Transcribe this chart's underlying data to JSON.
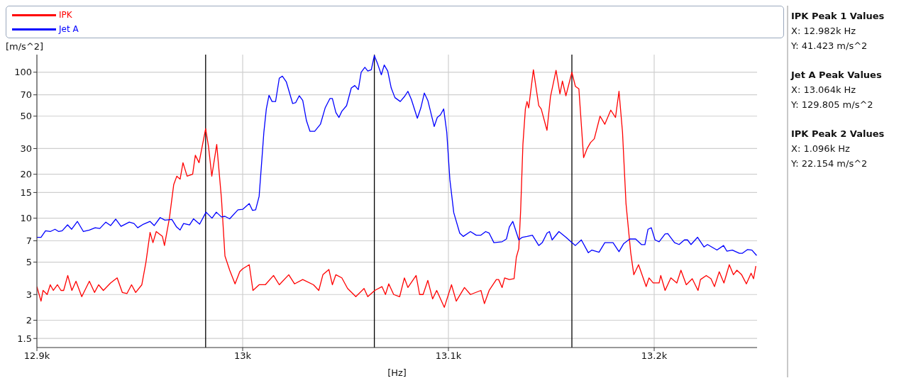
{
  "chart_data": {
    "type": "line",
    "xlabel": "[Hz]",
    "ylabel": "[m/s^2]",
    "log": "y",
    "grid": true,
    "legend": "top",
    "line_style": "solid",
    "xlim": [
      12900,
      13250
    ],
    "xticks": [
      {
        "value": 12900,
        "label": "12.9k"
      },
      {
        "value": 13000,
        "label": "13k"
      },
      {
        "value": 13100,
        "label": "13.1k"
      },
      {
        "value": 13200,
        "label": "13.2k"
      }
    ],
    "ylim": [
      1.3,
      132
    ],
    "yticks": [
      1.5,
      2,
      3,
      5,
      7,
      10,
      15,
      20,
      30,
      50,
      70,
      100
    ],
    "ref_lines": [
      {
        "axis": "x",
        "value": 12982,
        "color": "#000000"
      },
      {
        "axis": "x",
        "value": 13064,
        "color": "#000000"
      },
      {
        "axis": "x",
        "value": 13160,
        "color": "#000000"
      }
    ],
    "annotations": [
      "IPK Peak 1 Values",
      "X: 12.982k Hz",
      "Y: 41.423 m/s^2",
      "Jet A Peak Values",
      "X: 13.064k Hz",
      "Y: 129.805 m/s^2",
      "IPK Peak 2 Values",
      "X: 1.096k Hz",
      "Y: 22.154 m/s^2"
    ],
    "series": [
      {
        "name": "IPK",
        "color": "#ff0000",
        "x": [
          12900,
          12902,
          12903,
          12905,
          12906.5,
          12908,
          12910,
          12911.7,
          12913,
          12915,
          12917,
          12919,
          12921.8,
          12925.5,
          12928,
          12930,
          12932.3,
          12935.8,
          12939,
          12941.5,
          12943.8,
          12946,
          12948,
          12951,
          12953,
          12955,
          12956.4,
          12958,
          12961,
          12962,
          12964.4,
          12966.5,
          12968,
          12969.6,
          12971,
          12973,
          12975.7,
          12977,
          12978.8,
          12982,
          12983.4,
          12985,
          12987.4,
          12989.7,
          12991.4,
          12993.7,
          12996.3,
          12998.6,
          13000,
          13003.2,
          13005,
          13008,
          13011,
          13015,
          13017.8,
          13022.4,
          13025.2,
          13029.2,
          13034.4,
          13037,
          13039,
          13041.9,
          13043.6,
          13045.3,
          13048.2,
          13051,
          13055,
          13059,
          13060.8,
          13064.2,
          13067.7,
          13069.4,
          13071,
          13073.4,
          13076.3,
          13078.6,
          13080.3,
          13084.3,
          13086,
          13087.7,
          13090,
          13092.3,
          13094.3,
          13098,
          13101.5,
          13103.8,
          13107.8,
          13110.7,
          13115.8,
          13117.5,
          13119.8,
          13123.3,
          13124.4,
          13126.1,
          13127.3,
          13129.6,
          13131.9,
          13133,
          13134.2,
          13135.1,
          13136.2,
          13137.4,
          13138.2,
          13139,
          13141.3,
          13143.9,
          13145.1,
          13147.9,
          13149.6,
          13152.3,
          13154.2,
          13155.4,
          13157.1,
          13160,
          13161.7,
          13163.4,
          13165.7,
          13167.4,
          13169.1,
          13170.9,
          13173.7,
          13176,
          13178.9,
          13181.2,
          13182.9,
          13184.6,
          13186.3,
          13188.6,
          13190.1,
          13192.4,
          13196.1,
          13197.5,
          13199.5,
          13202.4,
          13203.2,
          13205.3,
          13208.1,
          13211,
          13213,
          13215.6,
          13218.5,
          13221.3,
          13222.5,
          13225.3,
          13227.6,
          13229.3,
          13231.6,
          13233.9,
          13236.5,
          13238.5,
          13240.2,
          13242.5,
          13244.8,
          13247.1,
          13248.3,
          13249.4
        ],
        "values": [
          3.4,
          2.7,
          3.2,
          3.0,
          3.5,
          3.2,
          3.5,
          3.2,
          3.2,
          4.05,
          3.2,
          3.7,
          2.9,
          3.7,
          3.1,
          3.5,
          3.2,
          3.6,
          3.9,
          3.1,
          3.05,
          3.5,
          3.1,
          3.5,
          5.0,
          8.0,
          6.8,
          8.1,
          7.5,
          6.5,
          10,
          17,
          19.4,
          18.5,
          24,
          19.4,
          20,
          27,
          24,
          41,
          31,
          19.4,
          32,
          13.6,
          5.5,
          4.4,
          3.55,
          4.3,
          4.5,
          4.8,
          3.2,
          3.5,
          3.5,
          4.05,
          3.5,
          4.1,
          3.55,
          3.8,
          3.5,
          3.2,
          4.1,
          4.45,
          3.5,
          4.1,
          3.9,
          3.3,
          2.9,
          3.3,
          2.9,
          3.2,
          3.4,
          3.0,
          3.55,
          3.0,
          2.9,
          3.9,
          3.35,
          4.05,
          3.0,
          3.0,
          3.75,
          2.8,
          3.2,
          2.45,
          3.5,
          2.7,
          3.35,
          3.0,
          3.2,
          2.6,
          3.2,
          3.8,
          3.8,
          3.35,
          3.9,
          3.8,
          3.85,
          5.4,
          6.2,
          11.3,
          32,
          56,
          63,
          57,
          104,
          59,
          56,
          40,
          68,
          103,
          71,
          87,
          69,
          100,
          80,
          77,
          26,
          30,
          33,
          35,
          50,
          44,
          55,
          49,
          74,
          39,
          12.6,
          5.8,
          4.1,
          4.8,
          3.4,
          3.9,
          3.6,
          3.6,
          4.05,
          3.2,
          3.9,
          3.6,
          4.4,
          3.5,
          3.85,
          3.2,
          3.8,
          4.05,
          3.85,
          3.4,
          4.3,
          3.6,
          4.8,
          4.1,
          4.4,
          4.1,
          3.55,
          4.2,
          3.85,
          4.7
        ]
      },
      {
        "name": "Jet A",
        "color": "#0000ff",
        "x": [
          12900,
          12902,
          12904.2,
          12906.5,
          12908.8,
          12910.6,
          12912.3,
          12914.9,
          12916.9,
          12919.7,
          12922.6,
          12925.5,
          12928.3,
          12930.6,
          12933.5,
          12935.8,
          12938.3,
          12940.9,
          12944.9,
          12947.2,
          12949,
          12951.8,
          12955,
          12957,
          12959.9,
          12962.2,
          12965.6,
          12967.9,
          12969.6,
          12971.3,
          12974.2,
          12976.1,
          12979.1,
          12982.2,
          12985.1,
          12987.2,
          12989.7,
          12991.4,
          12993.7,
          12997.7,
          13000,
          13003.2,
          13004.8,
          13006.3,
          13008,
          13009.2,
          13010.3,
          13011.5,
          13012.8,
          13014.3,
          13016,
          13017.8,
          13019.3,
          13021.2,
          13024.3,
          13025.8,
          13027.5,
          13029.2,
          13031,
          13032.7,
          13035,
          13037.8,
          13040.1,
          13042.4,
          13043.6,
          13045.3,
          13046.8,
          13048.2,
          13050.5,
          13052.8,
          13054.5,
          13056.2,
          13057.6,
          13059.4,
          13060.8,
          13062.5,
          13064,
          13065.6,
          13067.4,
          13068.8,
          13070.5,
          13072.2,
          13074,
          13076.6,
          13078.6,
          13080.3,
          13082,
          13084.9,
          13086.6,
          13088.3,
          13090,
          13093.1,
          13094.6,
          13096.1,
          13097.7,
          13099.2,
          13100.7,
          13102.6,
          13105.5,
          13107.2,
          13110.7,
          13113.5,
          13115.8,
          13118.1,
          13119.8,
          13122.1,
          13126.1,
          13128.2,
          13129.6,
          13131.3,
          13134.2,
          13135.9,
          13138.2,
          13140.8,
          13143.9,
          13145.6,
          13147.9,
          13149.1,
          13150.4,
          13153.7,
          13157.1,
          13160,
          13161.7,
          13164.6,
          13168,
          13169.7,
          13173.2,
          13176,
          13180,
          13182.9,
          13185.2,
          13188.1,
          13191,
          13193.8,
          13195.5,
          13197,
          13198.6,
          13200.4,
          13202.4,
          13205.3,
          13206.6,
          13209.9,
          13212.1,
          13214.7,
          13216.2,
          13217.9,
          13221.1,
          13224.2,
          13225.9,
          13230.5,
          13233.7,
          13235.3,
          13238,
          13241.4,
          13242.9,
          13245.4,
          13247.5,
          13249.8
        ],
        "values": [
          7.4,
          7.4,
          8.2,
          8.1,
          8.4,
          8.1,
          8.2,
          9.0,
          8.4,
          9.5,
          8.1,
          8.3,
          8.6,
          8.5,
          9.4,
          8.9,
          9.85,
          8.8,
          9.4,
          9.2,
          8.6,
          9.1,
          9.5,
          8.9,
          10.1,
          9.7,
          9.8,
          8.7,
          8.3,
          9.2,
          9.0,
          9.9,
          9.1,
          11,
          10,
          11,
          10.2,
          10.3,
          9.9,
          11.4,
          11.5,
          12.6,
          11.3,
          11.4,
          14.1,
          23.8,
          38.7,
          56,
          69.5,
          63,
          63,
          91,
          94,
          86,
          61,
          62,
          69,
          64,
          46.6,
          39.4,
          39.4,
          44,
          57,
          66,
          66,
          53,
          49,
          54,
          59,
          78,
          81,
          76,
          100,
          108,
          102,
          104,
          129.8,
          114,
          96,
          112,
          102,
          78,
          67,
          63,
          68,
          74,
          65,
          48.4,
          57,
          72,
          64,
          42.5,
          49,
          51,
          56,
          38.7,
          18.4,
          10.9,
          7.9,
          7.5,
          8.1,
          7.65,
          7.65,
          8.1,
          7.9,
          6.8,
          6.9,
          7.2,
          8.7,
          9.5,
          7.1,
          7.4,
          7.5,
          7.65,
          6.5,
          6.8,
          7.9,
          8.1,
          7.1,
          8.1,
          7.4,
          6.8,
          6.5,
          7.1,
          5.8,
          6.05,
          5.85,
          6.8,
          6.8,
          5.9,
          6.7,
          7.2,
          7.2,
          6.6,
          6.6,
          8.4,
          8.6,
          7.1,
          6.9,
          7.8,
          7.85,
          6.8,
          6.6,
          7.1,
          7.1,
          6.6,
          7.4,
          6.35,
          6.6,
          6.05,
          6.5,
          5.95,
          6.05,
          5.75,
          5.75,
          6.1,
          6.05,
          5.55
        ]
      }
    ]
  }
}
